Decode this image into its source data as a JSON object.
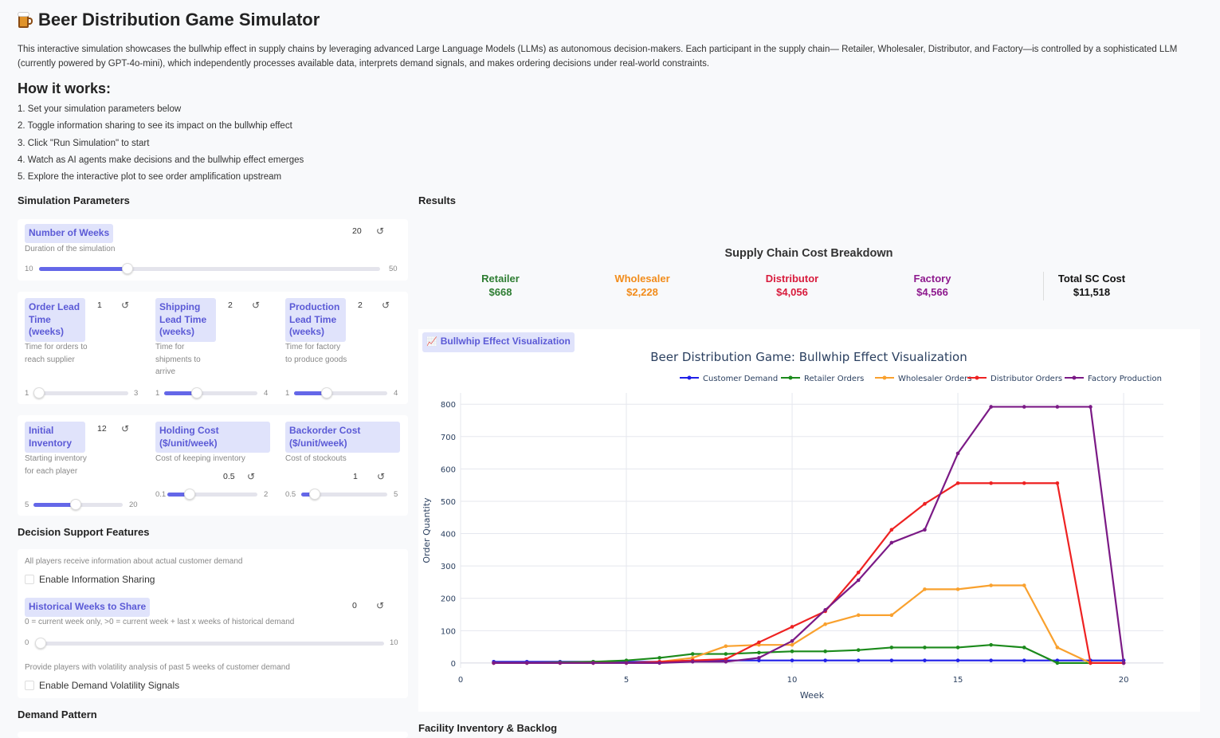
{
  "app": {
    "title": "Beer Distribution Game Simulator",
    "intro": "This interactive simulation showcases the bullwhip effect in supply chains by leveraging advanced Large Language Models (LLMs) as autonomous decision-makers. Each participant in the supply chain— Retailer, Wholesaler, Distributor, and Factory—is controlled by a sophisticated LLM (currently powered by GPT-4o-mini), which independently processes available data, interprets demand signals, and makes ordering decisions under real-world constraints.",
    "how_title": "How it works:",
    "steps": [
      "1. Set your simulation parameters below",
      "2. Toggle information sharing to see its impact on the bullwhip effect",
      "3. Click \"Run Simulation\" to start",
      "4. Watch as AI agents make decisions and the bullwhip effect emerges",
      "5. Explore the interactive plot to see order amplification upstream"
    ]
  },
  "params": {
    "section_title": "Simulation Parameters",
    "weeks": {
      "label": "Number of Weeks",
      "desc": "Duration of the simulation",
      "value": "20",
      "min": "10",
      "max": "50",
      "fraction": 0.25
    },
    "order_lead": {
      "label": "Order Lead Time (weeks)",
      "desc": "Time for orders to reach supplier",
      "value": "1",
      "min": "1",
      "max": "3",
      "fraction": 0.0
    },
    "shipping_lead": {
      "label": "Shipping Lead Time (weeks)",
      "desc": "Time for shipments to arrive",
      "value": "2",
      "min": "1",
      "max": "4",
      "fraction": 0.333
    },
    "production_lead": {
      "label": "Production Lead Time (weeks)",
      "desc": "Time for factory to produce goods",
      "value": "2",
      "min": "1",
      "max": "4",
      "fraction": 0.333
    },
    "initial_inventory": {
      "label": "Initial Inventory",
      "desc": "Starting inventory for each player",
      "value": "12",
      "min": "5",
      "max": "20",
      "fraction": 0.467
    },
    "holding_cost": {
      "label": "Holding Cost ($/unit/week)",
      "desc": "Cost of keeping inventory",
      "value": "0.5",
      "min": "0.1",
      "max": "2",
      "fraction": 0.21
    },
    "backorder_cost": {
      "label": "Backorder Cost ($/unit/week)",
      "desc": "Cost of stockouts",
      "value": "1",
      "min": "0.5",
      "max": "5",
      "fraction": 0.11
    }
  },
  "decision": {
    "section_title": "Decision Support Features",
    "info_desc": "All players receive information about actual customer demand",
    "info_label": "Enable Information Sharing",
    "hist": {
      "label": "Historical Weeks to Share",
      "desc": "0 = current week only, >0 = current week + last x weeks of historical demand",
      "value": "0",
      "min": "0",
      "max": "10",
      "fraction": 0.0
    },
    "vol_desc": "Provide players with volatility analysis of past 5 weeks of customer demand",
    "vol_label": "Enable Demand Volatility Signals"
  },
  "demand": {
    "section_title": "Demand Pattern"
  },
  "results": {
    "section_title": "Results",
    "cost_title": "Supply Chain Cost Breakdown",
    "costs": [
      {
        "name": "Retailer",
        "value": "$668",
        "color": "#2e7d32"
      },
      {
        "name": "Wholesaler",
        "value": "$2,228",
        "color": "#f28c1b"
      },
      {
        "name": "Distributor",
        "value": "$4,056",
        "color": "#d81b3c"
      },
      {
        "name": "Factory",
        "value": "$4,566",
        "color": "#8e1a8e"
      }
    ],
    "total": {
      "name": "Total SC Cost",
      "value": "$11,518"
    },
    "plot_chip": "Bullwhip Effect Visualization",
    "facility_title": "Facility Inventory & Backlog"
  },
  "chart_data": {
    "type": "line",
    "title": "Beer Distribution Game: Bullwhip Effect Visualization",
    "xlabel": "Week",
    "ylabel": "Order Quantity",
    "xlim": [
      0,
      21.2
    ],
    "ylim": [
      -15,
      835
    ],
    "xticks": [
      0,
      5,
      10,
      15,
      20
    ],
    "yticks": [
      0,
      100,
      200,
      300,
      400,
      500,
      600,
      700,
      800
    ],
    "legend_position": "top",
    "grid": true,
    "x": [
      1,
      2,
      3,
      4,
      5,
      6,
      7,
      8,
      9,
      10,
      11,
      12,
      13,
      14,
      15,
      16,
      17,
      18,
      19,
      20
    ],
    "series": [
      {
        "name": "Customer Demand",
        "color": "#1f1fe8",
        "values": [
          4,
          4,
          4,
          4,
          4,
          4,
          8,
          8,
          8,
          8,
          8,
          8,
          8,
          8,
          8,
          8,
          8,
          8,
          8,
          8
        ]
      },
      {
        "name": "Retailer Orders",
        "color": "#1b8a1b",
        "values": [
          0,
          0,
          2,
          4,
          8,
          16,
          28,
          28,
          32,
          36,
          36,
          40,
          48,
          48,
          48,
          56,
          48,
          0,
          0,
          0
        ]
      },
      {
        "name": "Wholesaler Orders",
        "color": "#f9a12e",
        "values": [
          0,
          0,
          0,
          0,
          0,
          4,
          16,
          52,
          56,
          56,
          120,
          148,
          148,
          228,
          228,
          240,
          240,
          48,
          0,
          0
        ]
      },
      {
        "name": "Distributor Orders",
        "color": "#ee2222",
        "values": [
          0,
          0,
          0,
          0,
          0,
          4,
          8,
          12,
          64,
          112,
          160,
          280,
          412,
          492,
          556,
          556,
          556,
          556,
          0,
          0
        ]
      },
      {
        "name": "Factory Production",
        "color": "#7b1a86",
        "values": [
          0,
          0,
          0,
          0,
          0,
          0,
          4,
          4,
          16,
          68,
          164,
          256,
          372,
          412,
          648,
          792,
          792,
          792,
          792,
          0
        ]
      }
    ]
  }
}
